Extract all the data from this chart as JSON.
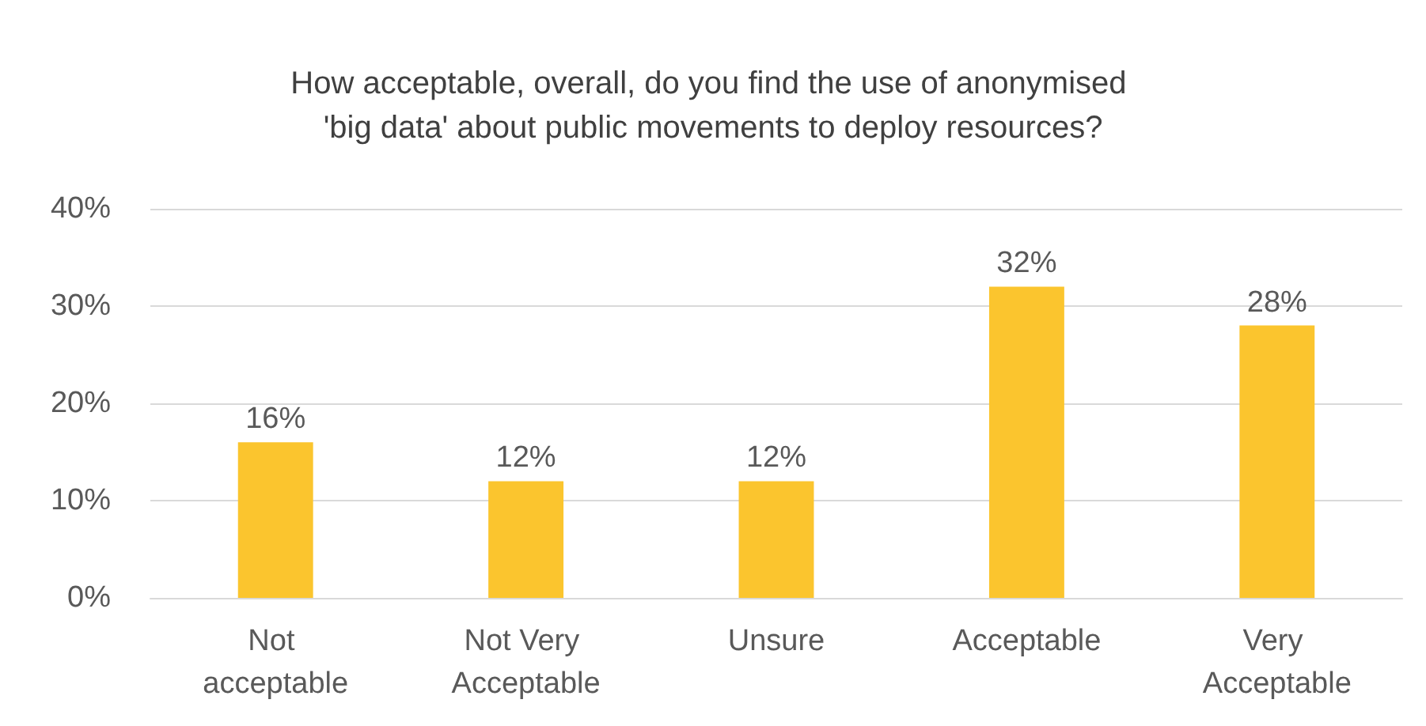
{
  "chart_data": {
    "type": "bar",
    "title": "How acceptable, overall, do you find the use of anonymised 'big data' about public movements to deploy resources?",
    "categories": [
      "Not acceptable",
      "Not Very Acceptable",
      "Unsure",
      "Acceptable",
      "Very Acceptable"
    ],
    "values": [
      16,
      12,
      12,
      32,
      28
    ],
    "value_labels": [
      "16%",
      "12%",
      "12%",
      "32%",
      "28%"
    ],
    "color": "#fbc52e",
    "ylim": [
      0,
      40
    ],
    "yticks": [
      {
        "value": 0,
        "label": "0%"
      },
      {
        "value": 10,
        "label": "10%"
      },
      {
        "value": 20,
        "label": "20%"
      },
      {
        "value": 30,
        "label": "30%"
      },
      {
        "value": 40,
        "label": "40%"
      }
    ],
    "grid": "y"
  }
}
